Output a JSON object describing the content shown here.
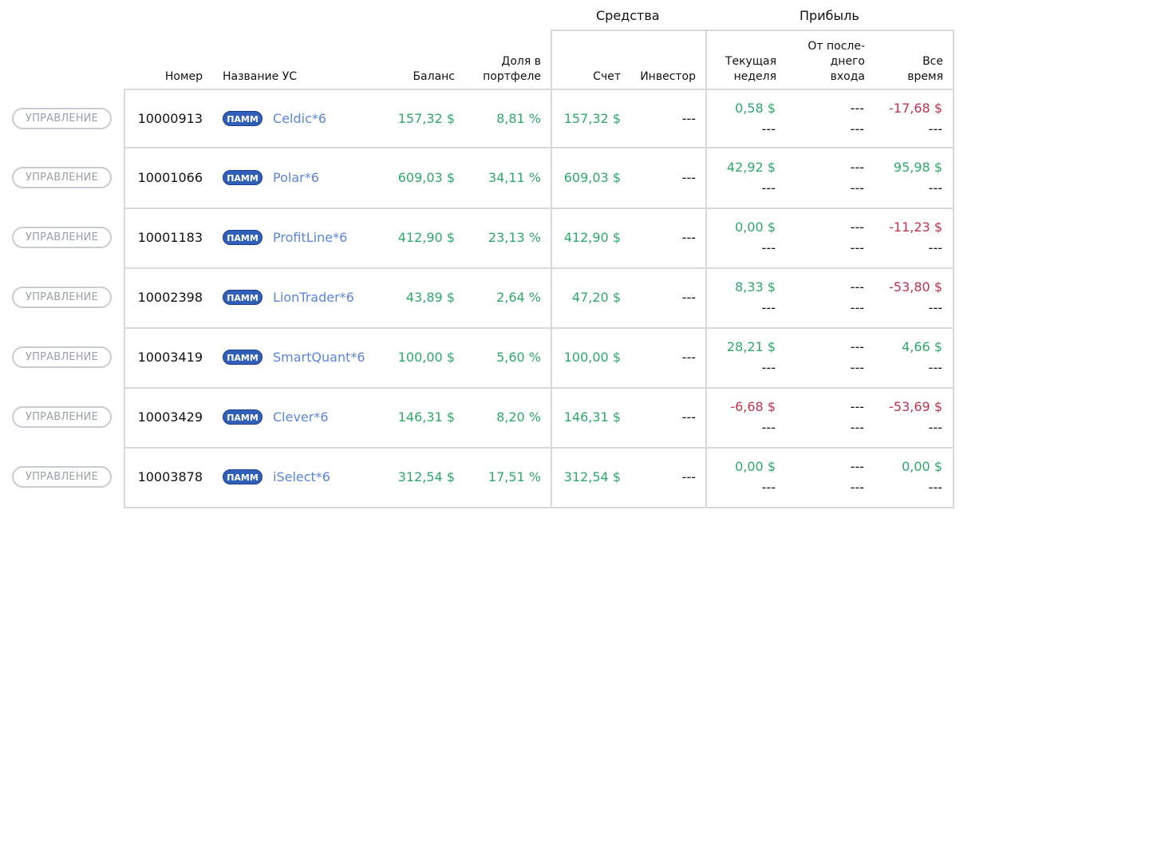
{
  "groups": {
    "funds": "Средства",
    "profit": "Прибыль"
  },
  "headers": {
    "number": "Номер",
    "name": "Название УС",
    "balance": "Баланс",
    "share_l1": "Доля в",
    "share_l2": "портфеле",
    "account": "Счет",
    "investor": "Инвестор",
    "week_l1": "Текущая",
    "week_l2": "неделя",
    "last_l1": "От после-",
    "last_l2": "днего",
    "last_l3": "входа",
    "all_l1": "Все",
    "all_l2": "время"
  },
  "rows": [
    {
      "button": "УПРАВЛЕНИЕ",
      "number": "10000913",
      "badge": "ПАММ",
      "name": "Celdic*6",
      "balance": "157,32 $",
      "share": "8,81 %",
      "account": "157,32 $",
      "investor": "---",
      "week": "0,58 $",
      "week_sign": "pos",
      "week2": "---",
      "last": "---",
      "last2": "---",
      "all": "-17,68 $",
      "all_sign": "neg",
      "all2": "---"
    },
    {
      "button": "УПРАВЛЕНИЕ",
      "number": "10001066",
      "badge": "ПАММ",
      "name": "Polar*6",
      "balance": "609,03 $",
      "share": "34,11 %",
      "account": "609,03 $",
      "investor": "---",
      "week": "42,92 $",
      "week_sign": "pos",
      "week2": "---",
      "last": "---",
      "last2": "---",
      "all": "95,98 $",
      "all_sign": "pos",
      "all2": "---"
    },
    {
      "button": "УПРАВЛЕНИЕ",
      "number": "10001183",
      "badge": "ПАММ",
      "name": "ProfitLine*6",
      "balance": "412,90 $",
      "share": "23,13 %",
      "account": "412,90 $",
      "investor": "---",
      "week": "0,00 $",
      "week_sign": "pos",
      "week2": "---",
      "last": "---",
      "last2": "---",
      "all": "-11,23 $",
      "all_sign": "neg",
      "all2": "---"
    },
    {
      "button": "УПРАВЛЕНИЕ",
      "number": "10002398",
      "badge": "ПАММ",
      "name": "LionTrader*6",
      "balance": "43,89 $",
      "share": "2,64 %",
      "account": "47,20 $",
      "investor": "---",
      "week": "8,33 $",
      "week_sign": "pos",
      "week2": "---",
      "last": "---",
      "last2": "---",
      "all": "-53,80 $",
      "all_sign": "neg",
      "all2": "---"
    },
    {
      "button": "УПРАВЛЕНИЕ",
      "number": "10003419",
      "badge": "ПАММ",
      "name": "SmartQuant*6",
      "balance": "100,00 $",
      "share": "5,60 %",
      "account": "100,00 $",
      "investor": "---",
      "week": "28,21 $",
      "week_sign": "pos",
      "week2": "---",
      "last": "---",
      "last2": "---",
      "all": "4,66 $",
      "all_sign": "pos",
      "all2": "---"
    },
    {
      "button": "УПРАВЛЕНИЕ",
      "number": "10003429",
      "badge": "ПАММ",
      "name": "Clever*6",
      "balance": "146,31 $",
      "share": "8,20 %",
      "account": "146,31 $",
      "investor": "---",
      "week": "-6,68 $",
      "week_sign": "neg",
      "week2": "---",
      "last": "---",
      "last2": "---",
      "all": "-53,69 $",
      "all_sign": "neg",
      "all2": "---"
    },
    {
      "button": "УПРАВЛЕНИЕ",
      "number": "10003878",
      "badge": "ПАММ",
      "name": "iSelect*6",
      "balance": "312,54 $",
      "share": "17,51 %",
      "account": "312,54 $",
      "investor": "---",
      "week": "0,00 $",
      "week_sign": "pos",
      "week2": "---",
      "last": "---",
      "last2": "---",
      "all": "0,00 $",
      "all_sign": "pos",
      "all2": "---"
    }
  ],
  "colors": {
    "positive": "#2fa86a",
    "negative": "#c2334d",
    "link": "#5b84e0",
    "badge": "#2f5fb8"
  }
}
